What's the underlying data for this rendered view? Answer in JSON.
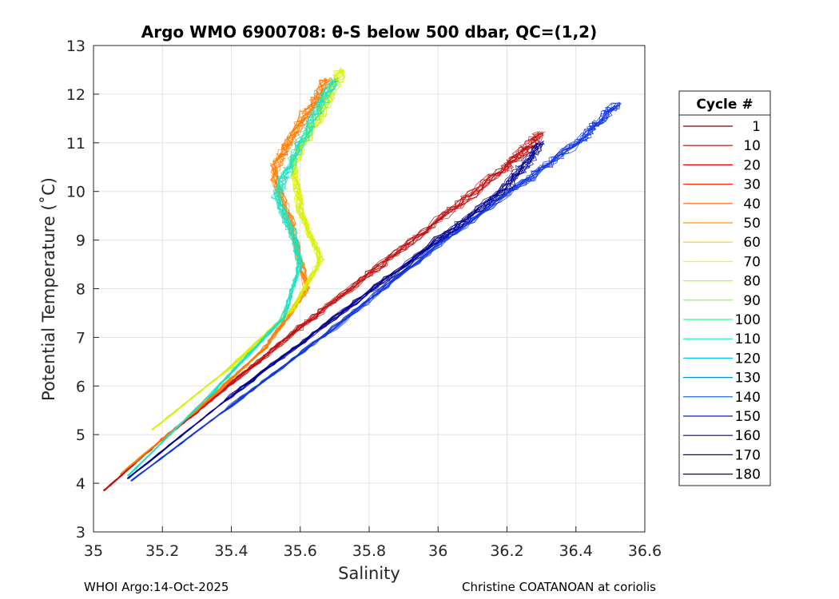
{
  "chart_data": {
    "type": "line",
    "title": "Argo WMO 6900708: θ-S below 500 dbar,  QC=(1,2)",
    "xlabel": "Salinity",
    "ylabel": "Potential Temperature (˚C)",
    "xlim": [
      35,
      36.6
    ],
    "ylim": [
      3,
      13
    ],
    "xticks": [
      "35",
      "35.2",
      "35.4",
      "35.6",
      "35.8",
      "36",
      "36.2",
      "36.4",
      "36.6"
    ],
    "yticks": [
      "3",
      "4",
      "5",
      "6",
      "7",
      "8",
      "9",
      "10",
      "11",
      "12",
      "13"
    ],
    "grid": true,
    "legend_position": "right",
    "legend_title": "Cycle #",
    "legend": [
      {
        "label": "1",
        "color": "#800000"
      },
      {
        "label": "10",
        "color": "#b30000"
      },
      {
        "label": "20",
        "color": "#e60000"
      },
      {
        "label": "30",
        "color": "#ff2a00"
      },
      {
        "label": "40",
        "color": "#ff6000"
      },
      {
        "label": "50",
        "color": "#ff9500"
      },
      {
        "label": "60",
        "color": "#ffcc00"
      },
      {
        "label": "70",
        "color": "#f2ff00"
      },
      {
        "label": "80",
        "color": "#b0ff30"
      },
      {
        "label": "90",
        "color": "#70ff50"
      },
      {
        "label": "100",
        "color": "#30ff90"
      },
      {
        "label": "110",
        "color": "#00f0c0"
      },
      {
        "label": "120",
        "color": "#00c8f0"
      },
      {
        "label": "130",
        "color": "#0090e0"
      },
      {
        "label": "140",
        "color": "#0058d8"
      },
      {
        "label": "150",
        "color": "#0020c0"
      },
      {
        "label": "160",
        "color": "#000090"
      },
      {
        "label": "170",
        "color": "#0000b8"
      },
      {
        "label": "180",
        "color": "#000080"
      }
    ],
    "series": [
      {
        "cycle_range": [
          1,
          30
        ],
        "color": "#c01010",
        "x": [
          35.03,
          35.2,
          35.4,
          35.6,
          35.8,
          36.0,
          36.2,
          36.3
        ],
        "y": [
          3.85,
          4.9,
          6.05,
          7.2,
          8.3,
          9.4,
          10.5,
          11.2
        ]
      },
      {
        "cycle_range": [
          30,
          60
        ],
        "color": "#ff7a00",
        "x": [
          35.08,
          35.3,
          35.5,
          35.62,
          35.58,
          35.52,
          35.6,
          35.68
        ],
        "y": [
          4.2,
          5.5,
          6.8,
          8.0,
          9.2,
          10.4,
          11.4,
          12.3
        ]
      },
      {
        "cycle_range": [
          60,
          90
        ],
        "color": "#d8f000",
        "x": [
          35.17,
          35.4,
          35.58,
          35.66,
          35.6,
          35.58,
          35.66,
          35.72
        ],
        "y": [
          5.1,
          6.4,
          7.6,
          8.6,
          9.6,
          10.6,
          11.6,
          12.5
        ]
      },
      {
        "cycle_range": [
          90,
          120
        ],
        "color": "#20e0c0",
        "x": [
          35.1,
          35.35,
          35.55,
          35.6,
          35.58,
          35.53,
          35.6,
          35.7
        ],
        "y": [
          4.15,
          5.9,
          7.4,
          8.5,
          9.1,
          9.9,
          11.0,
          12.3
        ]
      },
      {
        "cycle_range": [
          120,
          150
        ],
        "color": "#1038e0",
        "x": [
          35.11,
          35.4,
          35.7,
          36.0,
          36.25,
          36.42,
          36.52
        ],
        "y": [
          4.05,
          5.6,
          7.2,
          8.9,
          10.2,
          11.1,
          11.8
        ]
      },
      {
        "cycle_range": [
          150,
          180
        ],
        "color": "#000090",
        "x": [
          35.1,
          35.4,
          35.7,
          36.0,
          36.2,
          36.3
        ],
        "y": [
          4.1,
          5.8,
          7.4,
          9.0,
          10.1,
          11.0
        ]
      }
    ]
  },
  "footer": {
    "left": "WHOI Argo:14-Oct-2025",
    "right": "Christine COATANOAN at coriolis"
  }
}
